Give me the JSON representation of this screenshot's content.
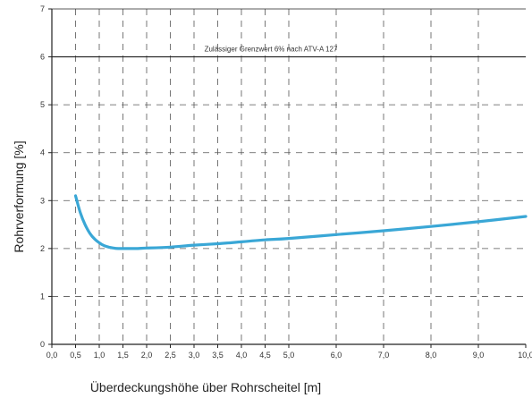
{
  "chart_data": {
    "type": "line",
    "xlabel": "Überdeckungshöhe über Rohrscheitel [m]",
    "ylabel": "Rohrverformung [%]",
    "x_ticks": [
      "0,0",
      "0,5",
      "1,0",
      "1,5",
      "2,0",
      "2,5",
      "3,0",
      "3,5",
      "4,0",
      "4,5",
      "5,0",
      "6,0",
      "7,0",
      "8,0",
      "9,0",
      "10,0"
    ],
    "y_ticks": [
      "0",
      "1",
      "2",
      "3",
      "4",
      "5",
      "6",
      "7"
    ],
    "xlim": [
      0,
      10
    ],
    "ylim": [
      0,
      7
    ],
    "grid": true,
    "limit_line": {
      "y": 6,
      "label": "Zulässiger Grenzwert 6% nach ATV-A 127"
    },
    "series": [
      {
        "x": [
          0.5,
          0.6,
          0.7,
          0.8,
          0.9,
          1.0,
          1.1,
          1.2,
          1.3,
          1.4,
          1.5,
          1.75,
          2.0,
          2.5,
          3.0,
          3.5,
          4.0,
          4.5,
          5.0,
          6.0,
          7.0,
          8.0,
          9.0,
          10.0
        ],
        "y": [
          3.1,
          2.75,
          2.5,
          2.32,
          2.2,
          2.12,
          2.06,
          2.03,
          2.01,
          2.0,
          2.0,
          2.0,
          2.01,
          2.03,
          2.07,
          2.1,
          2.14,
          2.18,
          2.21,
          2.29,
          2.37,
          2.46,
          2.56,
          2.67
        ]
      }
    ],
    "colors": {
      "curve": "#3aa7d6",
      "grid": "#555555",
      "limit": "#222222",
      "axis": "#222222"
    }
  }
}
